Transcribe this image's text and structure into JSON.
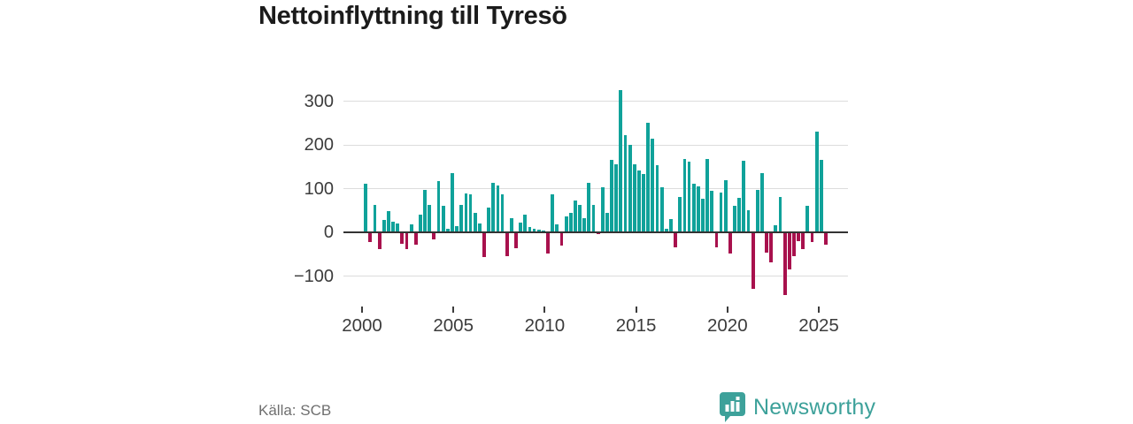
{
  "title": "Nettoinflyttning till Tyresö",
  "source": {
    "label": "Källa: SCB"
  },
  "branding": {
    "name": "Newsworthy",
    "icon": "speech-bubble-bar-chart-icon"
  },
  "colors": {
    "positive_bar": "#10a29a",
    "negative_bar": "#a8114d",
    "gridline": "#dcdcdc",
    "zero_line": "#333333",
    "title_text": "#1b1b1b",
    "axis_text": "#3c3c3c",
    "source_text": "#6f6f6f",
    "brand_teal": "#3da19a"
  },
  "chart_data": {
    "type": "bar",
    "title": "Nettoinflyttning till Tyresö",
    "frequency": "quarterly",
    "start_period": "2000-Q1",
    "end_period": "2025-Q2",
    "grid": true,
    "y_ticks": [
      300,
      200,
      100,
      0,
      -100
    ],
    "y_tick_labels": [
      "300",
      "200",
      "100",
      "0",
      "−100"
    ],
    "ylim": [
      -160,
      340
    ],
    "x_tick_years": [
      2000,
      2005,
      2010,
      2015,
      2020,
      2025
    ],
    "x_tick_labels": [
      "2000",
      "2005",
      "2010",
      "2015",
      "2020",
      "2025"
    ],
    "values": [
      112,
      -22,
      62,
      -38,
      28,
      48,
      24,
      21,
      -26,
      -38,
      19,
      -28,
      40,
      96,
      63,
      -16,
      117,
      61,
      8,
      136,
      14,
      63,
      89,
      86,
      45,
      21,
      -56,
      56,
      113,
      107,
      86,
      -54,
      32,
      -36,
      22,
      41,
      12,
      9,
      7,
      5,
      -49,
      86,
      19,
      -30,
      36,
      44,
      73,
      62,
      33,
      114,
      63,
      -5,
      103,
      45,
      166,
      156,
      325,
      222,
      200,
      155,
      141,
      134,
      250,
      215,
      153,
      104,
      9,
      30,
      -34,
      81,
      168,
      162,
      111,
      105,
      77,
      168,
      95,
      -34,
      90,
      120,
      -48,
      61,
      79,
      164,
      51,
      -130,
      97,
      136,
      -47,
      -69,
      16,
      81,
      -143,
      -85,
      -55,
      -21,
      -38,
      61,
      -22,
      230,
      166,
      -28
    ]
  }
}
